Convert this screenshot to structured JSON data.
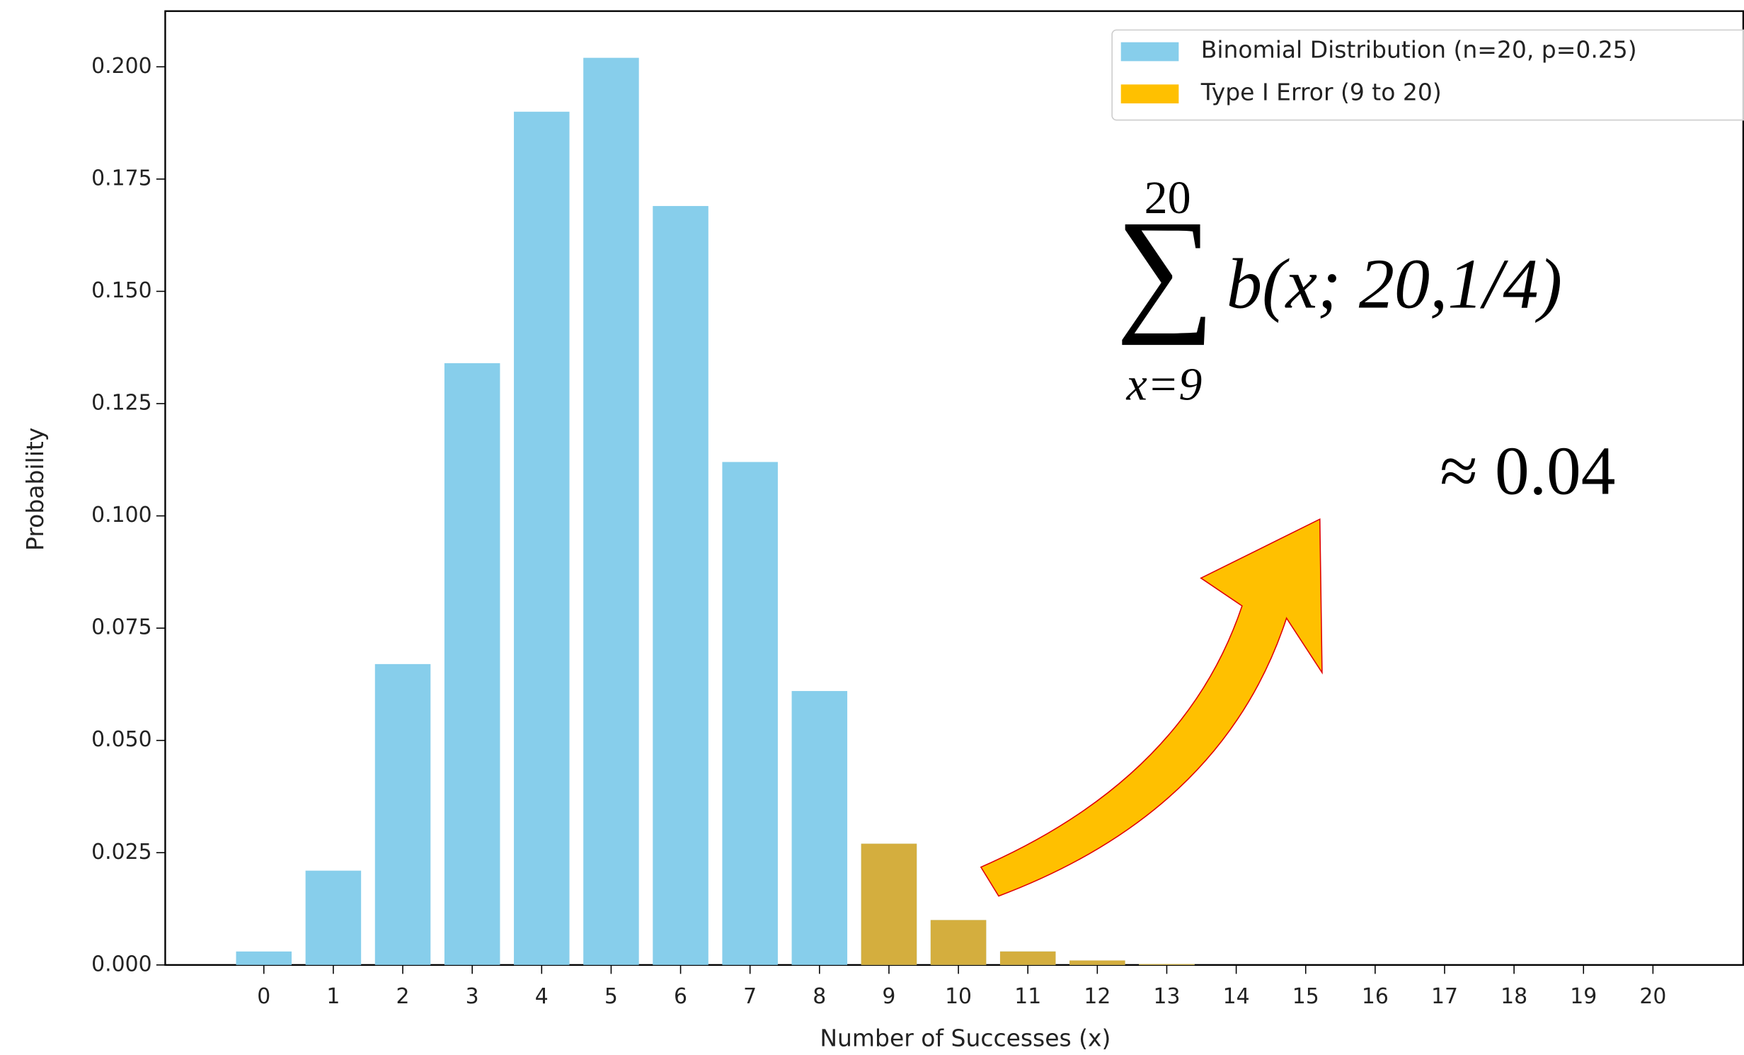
{
  "chart_data": {
    "type": "bar",
    "xlabel": "Number of Successes (x)",
    "ylabel": "Probability",
    "x": [
      0,
      1,
      2,
      3,
      4,
      5,
      6,
      7,
      8,
      9,
      10,
      11,
      12,
      13,
      14,
      15,
      16,
      17,
      18,
      19,
      20
    ],
    "series": [
      {
        "name": "Binomial Distribution (n=20, p=0.25)",
        "color": "#87ceeb",
        "values": [
          0.003,
          0.021,
          0.067,
          0.134,
          0.19,
          0.202,
          0.169,
          0.112,
          0.061,
          0.027,
          0.01,
          0.003,
          0.001,
          0.0002,
          0,
          0,
          0,
          0,
          0,
          0,
          0
        ]
      },
      {
        "name": "Type I Error (9 to 20)",
        "color": "#d4ae3e",
        "values": [
          null,
          null,
          null,
          null,
          null,
          null,
          null,
          null,
          null,
          0.027,
          0.01,
          0.003,
          0.001,
          0.0002,
          0,
          0,
          0,
          0,
          0,
          0,
          0
        ]
      }
    ],
    "legend_color_2": "#ffc000",
    "xlim": [
      -1.42,
      21.3
    ],
    "ylim": [
      0,
      0.2124
    ],
    "xticks": [
      0,
      1,
      2,
      3,
      4,
      5,
      6,
      7,
      8,
      9,
      10,
      11,
      12,
      13,
      14,
      15,
      16,
      17,
      18,
      19,
      20
    ],
    "yticks": [
      {
        "value": 0,
        "label": "0.000"
      },
      {
        "value": 0.025,
        "label": "0.025"
      },
      {
        "value": 0.05,
        "label": "0.050"
      },
      {
        "value": 0.075,
        "label": "0.075"
      },
      {
        "value": 0.1,
        "label": "0.100"
      },
      {
        "value": 0.125,
        "label": "0.125"
      },
      {
        "value": 0.15,
        "label": "0.150"
      },
      {
        "value": 0.175,
        "label": "0.175"
      },
      {
        "value": 0.2,
        "label": "0.200"
      }
    ],
    "legend": "upper right",
    "annotations": {
      "sum_upper": "20",
      "sum_symbol": "∑",
      "sum_lower": "x=9",
      "term": "b(x; 20,1/4)",
      "result": "≈ 0.04"
    }
  }
}
